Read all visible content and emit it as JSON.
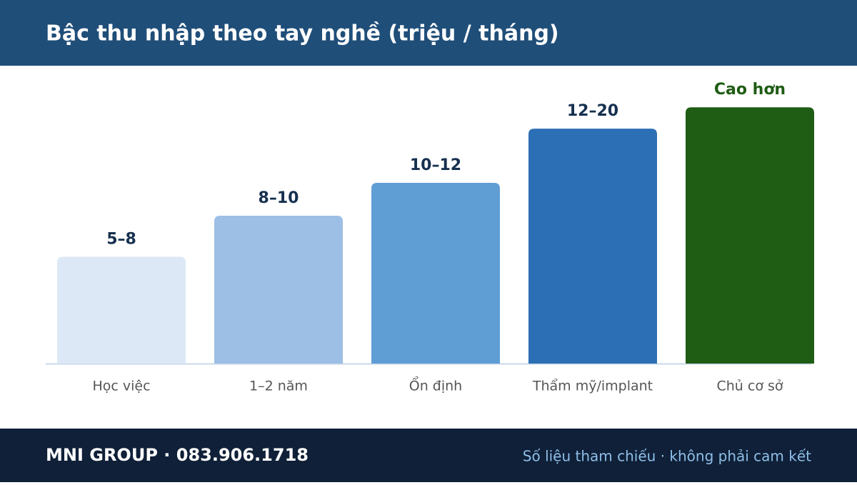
{
  "chart_data": {
    "type": "bar",
    "title": "Bậc thu nhập theo tay nghề (triệu / tháng)",
    "categories": [
      "Học việc",
      "1–2 năm",
      "Ổn định",
      "Thẩm mỹ/implant",
      "Chủ cơ sở"
    ],
    "values": [
      6.5,
      9,
      11,
      14.3,
      15.6
    ],
    "value_labels": [
      "5–8",
      "8–10",
      "10–12",
      "12–20",
      "Cao hơn"
    ],
    "colors": [
      "#dce8f5",
      "#9dbfe5",
      "#5f9dd5",
      "#2c6fb5",
      "#1f5c14"
    ],
    "label_colors": [
      "#16304f",
      "#16304f",
      "#16304f",
      "#16304f",
      "#1f5c14"
    ],
    "ylim": [
      0,
      16
    ]
  },
  "footer": {
    "brand": "MNI GROUP · 083.906.1718",
    "note": "Số liệu tham chiếu · không phải cam kết"
  }
}
